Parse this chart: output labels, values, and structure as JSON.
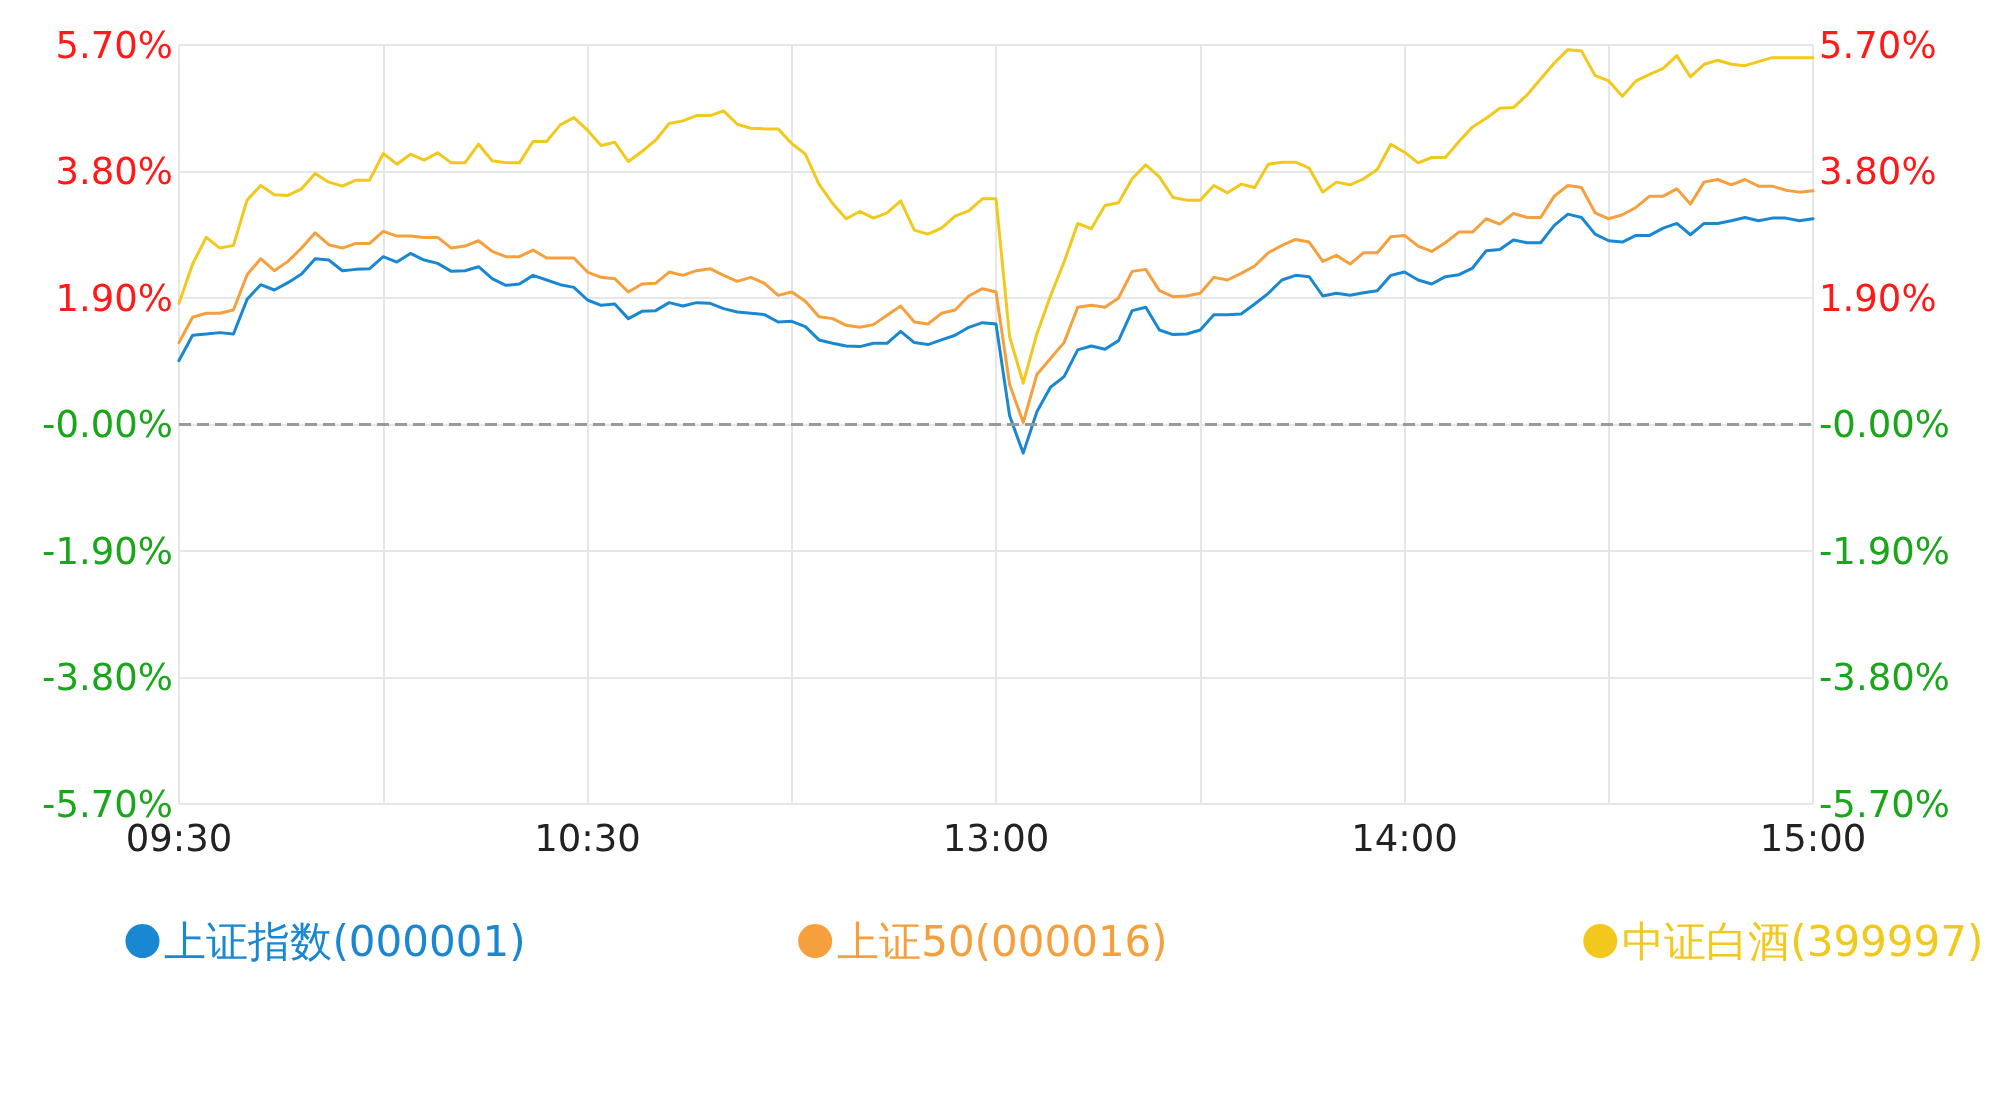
{
  "chart_data": {
    "type": "line",
    "categories": [
      "09:30",
      null,
      null,
      null,
      null,
      null,
      null,
      null,
      null,
      null,
      null,
      null,
      null,
      null,
      null,
      null,
      null,
      null,
      null,
      null,
      null,
      null,
      null,
      null,
      null,
      null,
      null,
      null,
      null,
      null,
      "10:30",
      null,
      null,
      null,
      null,
      null,
      null,
      null,
      null,
      null,
      null,
      null,
      null,
      null,
      null,
      null,
      null,
      null,
      null,
      null,
      null,
      null,
      null,
      null,
      null,
      null,
      null,
      null,
      null,
      null,
      "13:00",
      null,
      null,
      null,
      null,
      null,
      null,
      null,
      null,
      null,
      null,
      null,
      null,
      null,
      null,
      null,
      null,
      null,
      null,
      null,
      null,
      null,
      null,
      null,
      null,
      null,
      null,
      null,
      null,
      null,
      "14:00",
      null,
      null,
      null,
      null,
      null,
      null,
      null,
      null,
      null,
      null,
      null,
      null,
      null,
      null,
      null,
      null,
      null,
      null,
      null,
      null,
      null,
      null,
      null,
      null,
      null,
      null,
      null,
      null,
      null,
      "15:00"
    ],
    "ylim": [
      -5.7,
      5.7
    ],
    "yticks": [
      {
        "value": -5.7,
        "label": "-5.70%"
      },
      {
        "value": -3.8,
        "label": "-3.80%"
      },
      {
        "value": -1.9,
        "label": "-1.90%"
      },
      {
        "value": 0,
        "label": "-0.00%"
      },
      {
        "value": 1.9,
        "label": "1.90%"
      },
      {
        "value": 3.8,
        "label": "3.80%"
      },
      {
        "value": 5.7,
        "label": "5.70%"
      }
    ],
    "y2lim": [
      -5.7,
      5.7
    ],
    "y2ticks": [
      {
        "value": -5.7,
        "label": "-5.70%"
      },
      {
        "value": -3.8,
        "label": "-3.80%"
      },
      {
        "value": -1.9,
        "label": "-1.90%"
      },
      {
        "value": 0,
        "label": "-0.00%"
      },
      {
        "value": 1.9,
        "label": "1.90%"
      },
      {
        "value": 3.8,
        "label": "3.80%"
      },
      {
        "value": 5.7,
        "label": "5.70%"
      }
    ],
    "grid": true,
    "legend": "bottom",
    "marker": "none",
    "line_style": "solid",
    "ref_lines": [
      {
        "axis": "y",
        "value": 0,
        "color": "#999999",
        "line_style": "dashed"
      }
    ],
    "series": [
      {
        "name": "上证指数(000001)",
        "color": "#1a87d2",
        "values": [
          0.96,
          1.34,
          1.36,
          1.38,
          1.36,
          1.88,
          2.1,
          2.02,
          2.13,
          2.26,
          2.49,
          2.47,
          2.31,
          2.33,
          2.34,
          2.52,
          2.44,
          2.57,
          2.47,
          2.42,
          2.3,
          2.31,
          2.37,
          2.19,
          2.09,
          2.11,
          2.24,
          2.17,
          2.1,
          2.06,
          1.87,
          1.79,
          1.81,
          1.59,
          1.7,
          1.71,
          1.83,
          1.78,
          1.83,
          1.82,
          1.74,
          1.69,
          1.67,
          1.65,
          1.54,
          1.55,
          1.47,
          1.27,
          1.22,
          1.18,
          1.17,
          1.22,
          1.22,
          1.4,
          1.23,
          1.2,
          1.27,
          1.34,
          1.46,
          1.53,
          1.51,
          0.13,
          -0.43,
          0.19,
          0.56,
          0.72,
          1.12,
          1.18,
          1.13,
          1.26,
          1.71,
          1.76,
          1.42,
          1.35,
          1.36,
          1.42,
          1.65,
          1.65,
          1.66,
          1.81,
          1.97,
          2.17,
          2.24,
          2.22,
          1.93,
          1.97,
          1.94,
          1.98,
          2.01,
          2.24,
          2.29,
          2.17,
          2.11,
          2.22,
          2.25,
          2.35,
          2.61,
          2.63,
          2.77,
          2.73,
          2.73,
          2.99,
          3.16,
          3.11,
          2.86,
          2.76,
          2.74,
          2.84,
          2.84,
          2.95,
          3.02,
          2.85,
          3.02,
          3.02,
          3.06,
          3.11,
          3.06,
          3.1,
          3.1,
          3.06,
          3.09
        ]
      },
      {
        "name": "上证50(000016)",
        "color": "#f5a03c",
        "values": [
          1.23,
          1.61,
          1.67,
          1.67,
          1.72,
          2.25,
          2.49,
          2.31,
          2.45,
          2.65,
          2.88,
          2.7,
          2.65,
          2.72,
          2.72,
          2.9,
          2.83,
          2.83,
          2.81,
          2.81,
          2.65,
          2.68,
          2.76,
          2.6,
          2.52,
          2.52,
          2.62,
          2.5,
          2.5,
          2.5,
          2.29,
          2.21,
          2.19,
          1.99,
          2.11,
          2.12,
          2.29,
          2.24,
          2.31,
          2.34,
          2.24,
          2.15,
          2.21,
          2.12,
          1.94,
          1.99,
          1.85,
          1.62,
          1.59,
          1.49,
          1.46,
          1.5,
          1.64,
          1.78,
          1.54,
          1.51,
          1.67,
          1.72,
          1.93,
          2.04,
          1.99,
          0.6,
          0.03,
          0.75,
          0.99,
          1.23,
          1.76,
          1.79,
          1.76,
          1.9,
          2.3,
          2.33,
          2.01,
          1.92,
          1.93,
          1.97,
          2.21,
          2.17,
          2.27,
          2.38,
          2.58,
          2.69,
          2.78,
          2.74,
          2.45,
          2.54,
          2.41,
          2.58,
          2.58,
          2.82,
          2.84,
          2.68,
          2.6,
          2.73,
          2.89,
          2.89,
          3.09,
          3.01,
          3.17,
          3.11,
          3.11,
          3.43,
          3.59,
          3.56,
          3.18,
          3.09,
          3.15,
          3.26,
          3.43,
          3.43,
          3.54,
          3.31,
          3.64,
          3.68,
          3.6,
          3.68,
          3.58,
          3.58,
          3.52,
          3.49,
          3.51
        ]
      },
      {
        "name": "中证白酒(399997)",
        "color": "#f2c81c",
        "values": [
          1.82,
          2.41,
          2.81,
          2.65,
          2.69,
          3.37,
          3.59,
          3.45,
          3.44,
          3.54,
          3.77,
          3.64,
          3.58,
          3.67,
          3.67,
          4.07,
          3.91,
          4.06,
          3.97,
          4.08,
          3.93,
          3.93,
          4.21,
          3.96,
          3.93,
          3.93,
          4.25,
          4.25,
          4.5,
          4.61,
          4.42,
          4.19,
          4.24,
          3.95,
          4.1,
          4.27,
          4.52,
          4.56,
          4.64,
          4.64,
          4.71,
          4.51,
          4.45,
          4.44,
          4.44,
          4.22,
          4.06,
          3.61,
          3.32,
          3.09,
          3.2,
          3.1,
          3.18,
          3.36,
          2.92,
          2.86,
          2.95,
          3.13,
          3.21,
          3.39,
          3.39,
          1.32,
          0.62,
          1.36,
          1.93,
          2.44,
          3.02,
          2.94,
          3.29,
          3.33,
          3.69,
          3.9,
          3.72,
          3.41,
          3.37,
          3.37,
          3.59,
          3.48,
          3.61,
          3.56,
          3.91,
          3.94,
          3.94,
          3.85,
          3.49,
          3.64,
          3.6,
          3.69,
          3.83,
          4.21,
          4.09,
          3.93,
          4.01,
          4.01,
          4.25,
          4.47,
          4.6,
          4.75,
          4.76,
          4.95,
          5.19,
          5.43,
          5.63,
          5.61,
          5.24,
          5.16,
          4.93,
          5.16,
          5.26,
          5.35,
          5.54,
          5.22,
          5.41,
          5.47,
          5.41,
          5.39,
          5.45,
          5.51,
          5.51,
          5.51,
          5.51
        ]
      }
    ]
  }
}
